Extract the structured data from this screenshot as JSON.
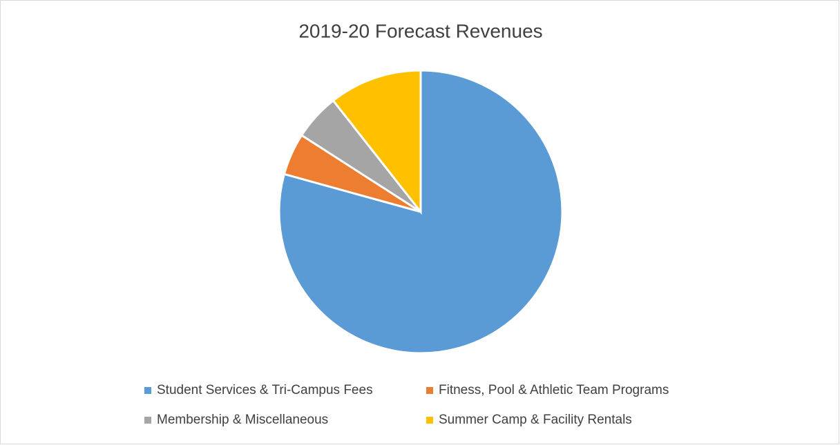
{
  "chart_data": {
    "type": "pie",
    "title": "2019-20 Forecast Revenues",
    "categories": [
      "Student Services & Tri-Campus Fees",
      "Fitness, Pool & Athletic Team Programs",
      "Membership & Miscellaneous",
      "Summer Camp & Facility Rentals"
    ],
    "values": [
      79.3,
      4.8,
      5.3,
      10.6
    ],
    "colors": [
      "#5b9bd5",
      "#ed7d31",
      "#a5a5a5",
      "#ffc000"
    ],
    "legend": "bottom"
  }
}
